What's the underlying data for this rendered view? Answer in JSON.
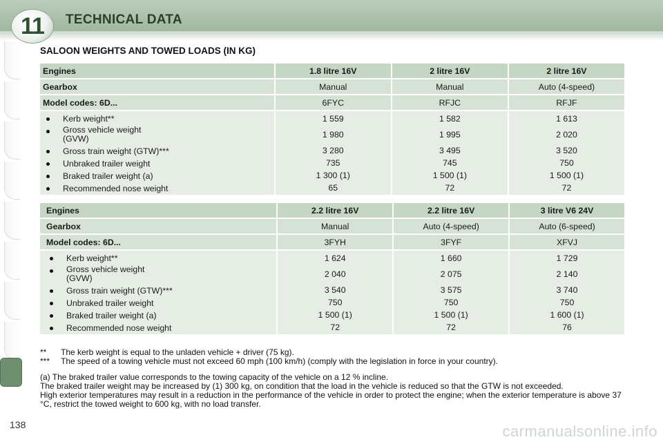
{
  "header": {
    "chapter": "11",
    "title": "TECHNICAL DATA"
  },
  "section_title": "SALOON WEIGHTS AND TOWED LOADS (IN KG)",
  "tables": [
    {
      "engines_label": "Engines",
      "engines": [
        "1.8 litre 16V",
        "2 litre 16V",
        "2 litre 16V"
      ],
      "gearbox_label": "Gearbox",
      "gearbox": [
        "Manual",
        "Manual",
        "Auto (4-speed)"
      ],
      "codes_label": "Model codes: 6D...",
      "codes": [
        "6FYC",
        "RFJC",
        "RFJF"
      ],
      "items": [
        "Kerb weight**",
        "Gross vehicle weight (GVW)",
        "Gross train weight (GTW)***",
        "Unbraked trailer weight",
        "Braked trailer weight (a)",
        "Recommended nose weight"
      ],
      "values": [
        [
          "1 559",
          "1 980",
          "3 280",
          "735",
          "1 300 (1)",
          "65"
        ],
        [
          "1 582",
          "1 995",
          "3 495",
          "745",
          "1 500 (1)",
          "72"
        ],
        [
          "1 613",
          "2 020",
          "3 520",
          "750",
          "1 500 (1)",
          "72"
        ]
      ]
    },
    {
      "engines_label": "Engines",
      "engines": [
        "2.2 litre 16V",
        "2.2 litre 16V",
        "3 litre V6 24V"
      ],
      "gearbox_label": "Gearbox",
      "gearbox": [
        "Manual",
        "Auto (4-speed)",
        "Auto (6-speed)"
      ],
      "codes_label": "Model codes: 6D...",
      "codes": [
        "3FYH",
        "3FYF",
        "XFVJ"
      ],
      "items": [
        "Kerb weight**",
        "Gross vehicle weight (GVW)",
        "Gross train weight (GTW)***",
        "Unbraked trailer weight",
        "Braked trailer weight (a)",
        "Recommended nose weight"
      ],
      "values": [
        [
          "1 624",
          "2 040",
          "3 540",
          "750",
          "1 500 (1)",
          "72"
        ],
        [
          "1 660",
          "2 075",
          "3 575",
          "750",
          "1 500 (1)",
          "72"
        ],
        [
          "1 729",
          "2 140",
          "3 740",
          "750",
          "1 600 (1)",
          "76"
        ]
      ]
    }
  ],
  "footnotes": [
    {
      "mark": "**",
      "text": "The kerb weight is equal to the unladen vehicle + driver (75 kg)."
    },
    {
      "mark": "***",
      "text": "The speed of a towing vehicle must not exceed 60 mph (100 km/h) (comply with the legislation in force in your country)."
    }
  ],
  "paragraphs": [
    "(a) The braked trailer value corresponds to the towing capacity of the vehicle on a 12 % incline.",
    "The braked trailer weight may be increased by (1) 300 kg, on condition that the load in the vehicle is reduced so that the GTW is not exceeded.",
    "High exterior temperatures may result in a reduction in the performance of the vehicle in order to protect the engine; when the exterior temperature is above 37 °C, restrict the towed weight to 600 kg, with no load transfer."
  ],
  "page_number": "138",
  "watermark": "carmanualsonline.info"
}
